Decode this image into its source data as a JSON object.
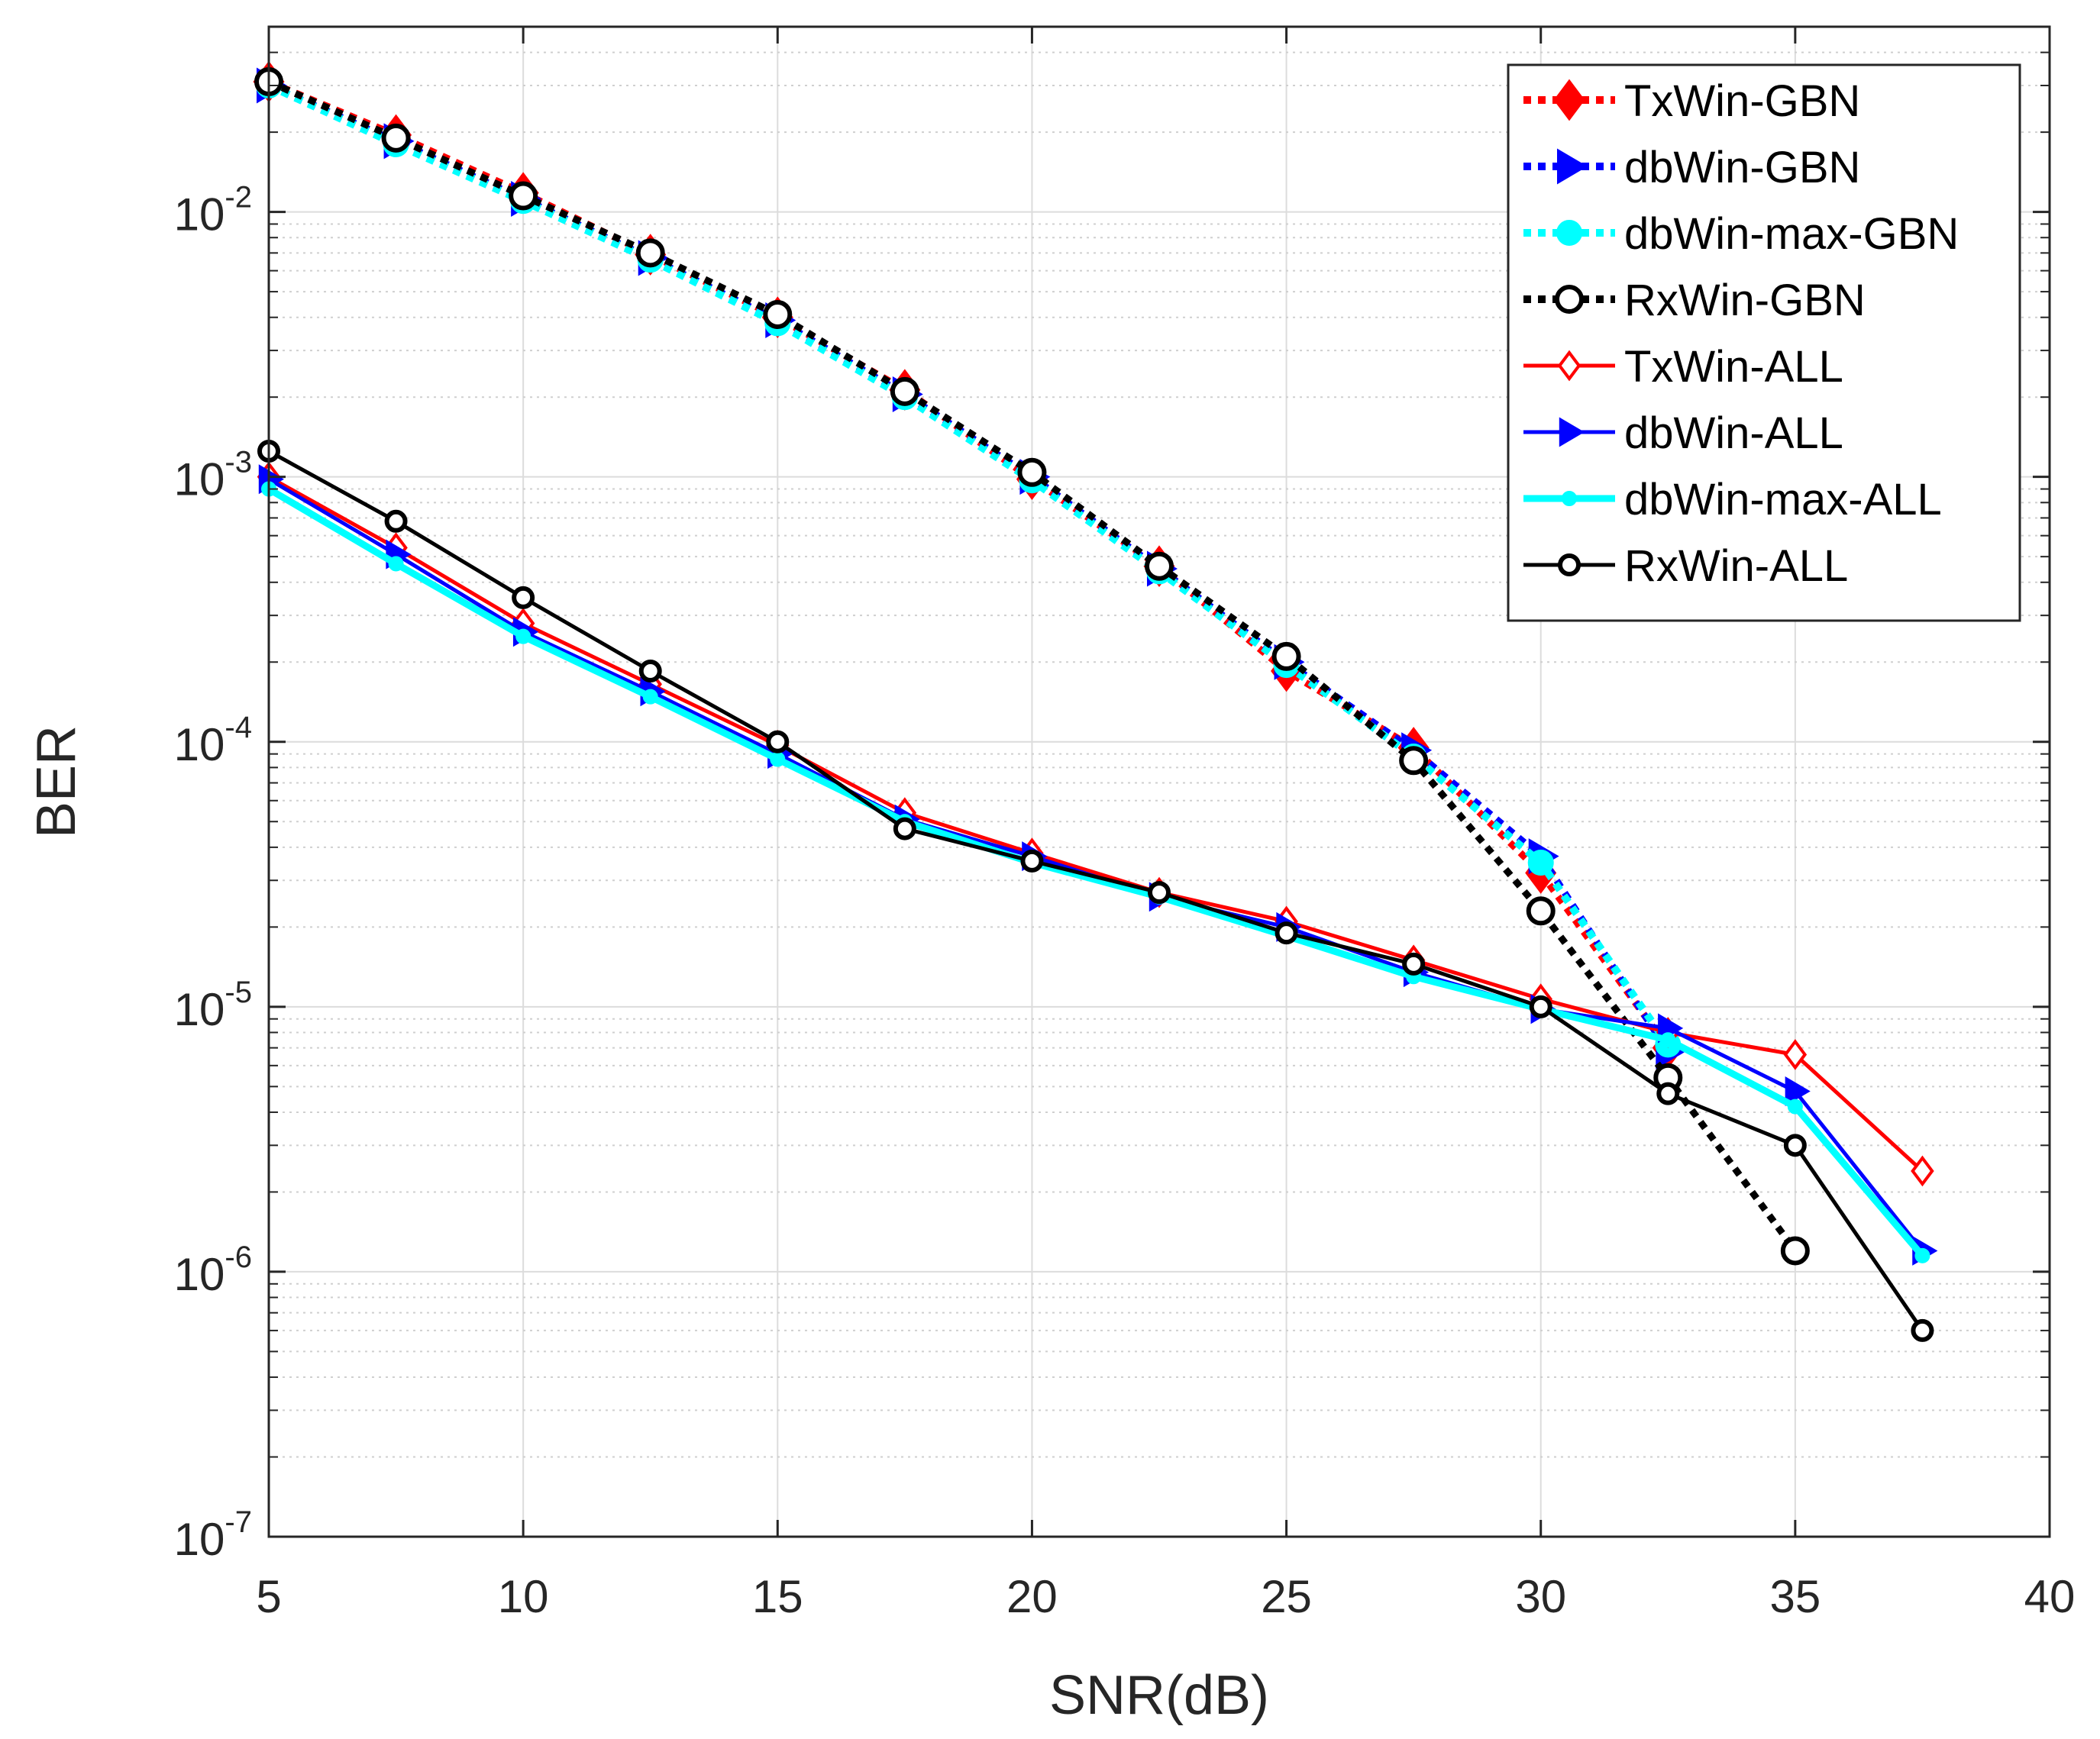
{
  "chart_data": {
    "type": "line",
    "title": "",
    "xlabel": "SNR(dB)",
    "ylabel": "BER",
    "xlim": [
      5,
      40
    ],
    "ylim": [
      1e-07,
      0.05
    ],
    "yscale": "log",
    "grid": true,
    "minor_grid": true,
    "legend_location": "top-right",
    "xticks": [
      "5",
      "10",
      "15",
      "20",
      "25",
      "30",
      "35",
      "40"
    ],
    "yticks": [
      {
        "base": "10",
        "exp": "-7"
      },
      {
        "base": "10",
        "exp": "-6"
      },
      {
        "base": "10",
        "exp": "-5"
      },
      {
        "base": "10",
        "exp": "-4"
      },
      {
        "base": "10",
        "exp": "-3"
      },
      {
        "base": "10",
        "exp": "-2"
      }
    ],
    "series": [
      {
        "name": "TxWin-GBN",
        "color": "#ff0000",
        "style": "dotted",
        "marker": "diamond",
        "marker_fill": true,
        "x": [
          5,
          7.5,
          10,
          12.5,
          15,
          17.5,
          20,
          22.5,
          25,
          27.5,
          30,
          32.5
        ],
        "y": [
          0.031,
          0.0195,
          0.0118,
          0.0069,
          0.004,
          0.00213,
          0.00098,
          0.00046,
          0.000185,
          9.5e-05,
          3.2e-05,
          7e-06
        ]
      },
      {
        "name": "dbWin-GBN",
        "color": "#0000ff",
        "style": "dotted",
        "marker": "triangle-right",
        "marker_fill": true,
        "x": [
          5,
          7.5,
          10,
          12.5,
          15,
          17.5,
          20,
          22.5,
          25,
          27.5,
          30,
          32.5
        ],
        "y": [
          0.03,
          0.0185,
          0.0112,
          0.0067,
          0.0039,
          0.00205,
          0.001,
          0.00045,
          0.0002,
          9.3e-05,
          3.7e-05,
          6.8e-06
        ]
      },
      {
        "name": "dbWin-max-GBN",
        "color": "#00ffff",
        "style": "dotted",
        "marker": "circle",
        "marker_fill": true,
        "x": [
          5,
          7.5,
          10,
          12.5,
          15,
          17.5,
          20,
          22.5,
          25,
          27.5,
          30,
          32.5
        ],
        "y": [
          0.03,
          0.018,
          0.011,
          0.0066,
          0.0038,
          0.002,
          0.00097,
          0.00044,
          0.000195,
          8.8e-05,
          3.5e-05,
          7.2e-06
        ]
      },
      {
        "name": "RxWin-GBN",
        "color": "#000000",
        "style": "dotted",
        "marker": "circle",
        "marker_fill": false,
        "x": [
          5,
          7.5,
          10,
          12.5,
          15,
          17.5,
          20,
          22.5,
          25,
          27.5,
          30,
          32.5,
          35
        ],
        "y": [
          0.031,
          0.019,
          0.0115,
          0.007,
          0.0041,
          0.0021,
          0.00104,
          0.00046,
          0.00021,
          8.5e-05,
          2.3e-05,
          5.4e-06,
          1.2e-06
        ]
      },
      {
        "name": "TxWin-ALL",
        "color": "#ff0000",
        "style": "solid",
        "marker": "diamond",
        "marker_fill": false,
        "x": [
          5,
          7.5,
          10,
          12.5,
          15,
          17.5,
          20,
          22.5,
          25,
          27.5,
          30,
          32.5,
          35,
          37.5
        ],
        "y": [
          0.001,
          0.00054,
          0.00028,
          0.000165,
          9.7e-05,
          5.4e-05,
          3.8e-05,
          2.7e-05,
          2.1e-05,
          1.5e-05,
          1.07e-05,
          8e-06,
          6.6e-06,
          2.4e-06
        ]
      },
      {
        "name": "dbWin-ALL",
        "color": "#0000ff",
        "style": "solid",
        "marker": "triangle-right",
        "marker_fill": true,
        "x": [
          5,
          7.5,
          10,
          12.5,
          15,
          17.5,
          20,
          22.5,
          25,
          27.5,
          30,
          32.5,
          35,
          37.5
        ],
        "y": [
          0.00098,
          0.00051,
          0.00026,
          0.000155,
          9e-05,
          5.1e-05,
          3.7e-05,
          2.6e-05,
          2e-05,
          1.35e-05,
          9.8e-06,
          8.3e-06,
          4.8e-06,
          1.2e-06
        ]
      },
      {
        "name": "dbWin-max-ALL",
        "color": "#00ffff",
        "style": "solid",
        "marker": "circle",
        "marker_fill": true,
        "x": [
          5,
          7.5,
          10,
          12.5,
          15,
          17.5,
          20,
          22.5,
          25,
          27.5,
          30,
          32.5,
          35,
          37.5
        ],
        "y": [
          0.0009,
          0.00047,
          0.00025,
          0.000148,
          8.6e-05,
          5e-05,
          3.5e-05,
          2.6e-05,
          1.85e-05,
          1.3e-05,
          9.8e-06,
          7.5e-06,
          4.2e-06,
          1.15e-06
        ]
      },
      {
        "name": "RxWin-ALL",
        "color": "#000000",
        "style": "solid",
        "marker": "circle",
        "marker_fill": false,
        "x": [
          5,
          7.5,
          10,
          12.5,
          15,
          17.5,
          20,
          22.5,
          25,
          27.5,
          30,
          32.5,
          35,
          37.5
        ],
        "y": [
          0.00125,
          0.00068,
          0.00035,
          0.000185,
          0.0001,
          4.7e-05,
          3.55e-05,
          2.7e-05,
          1.9e-05,
          1.45e-05,
          1e-05,
          4.7e-06,
          3e-06,
          6e-07
        ]
      }
    ]
  }
}
